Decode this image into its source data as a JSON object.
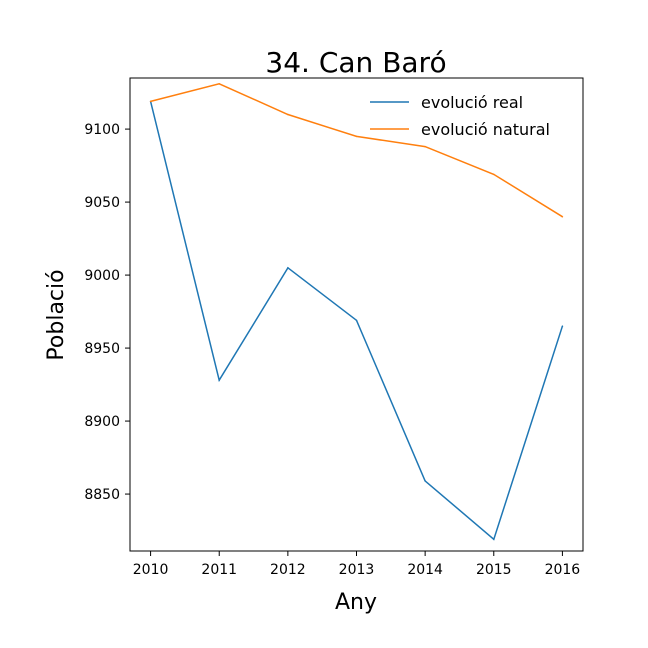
{
  "chart_data": {
    "type": "line",
    "title": "34. Can Baró",
    "xlabel": "Any",
    "ylabel": "Població",
    "x": [
      2010,
      2011,
      2012,
      2013,
      2014,
      2015,
      2016
    ],
    "xlim": [
      2009.7,
      2016.3
    ],
    "ylim": [
      8811,
      9135
    ],
    "yticks": [
      8850,
      8900,
      8950,
      9000,
      9050,
      9100
    ],
    "series": [
      {
        "name": "evolució real",
        "color": "#1f77b4",
        "values": [
          9119,
          8928,
          9005,
          8969,
          8859,
          8819,
          8965
        ]
      },
      {
        "name": "evolució natural",
        "color": "#ff7f0e",
        "values": [
          9119,
          9131,
          9110,
          9095,
          9088,
          9069,
          9040
        ]
      }
    ],
    "legend": "top-right",
    "grid": false
  }
}
